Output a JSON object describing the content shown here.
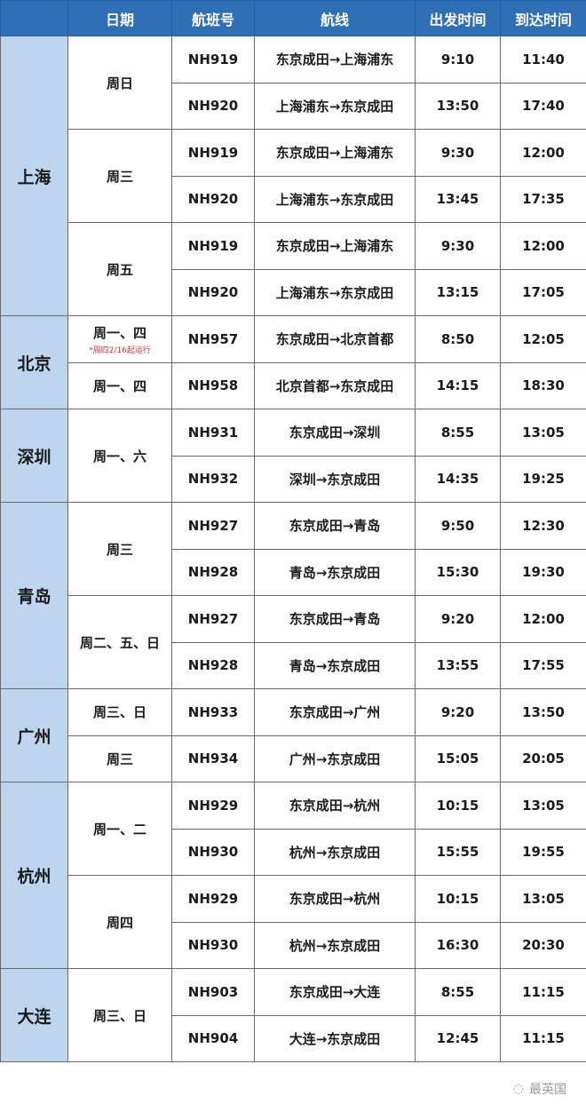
{
  "header": {
    "city": "",
    "date": "日期",
    "flight": "航班号",
    "route": "航线",
    "depart": "出发时间",
    "arrive": "到达时间"
  },
  "colors": {
    "header_bg": "#2f6fb6",
    "city_bg": "#bdd5ee",
    "note": "#d0343c"
  },
  "cities": [
    {
      "name": "上海",
      "groups": [
        {
          "days": "周日",
          "flights": [
            {
              "no": "NH919",
              "route": "东京成田→上海浦东",
              "dep": "9:10",
              "arr": "11:40"
            },
            {
              "no": "NH920",
              "route": "上海浦东→东京成田",
              "dep": "13:50",
              "arr": "17:40"
            }
          ]
        },
        {
          "days": "周三",
          "flights": [
            {
              "no": "NH919",
              "route": "东京成田→上海浦东",
              "dep": "9:30",
              "arr": "12:00"
            },
            {
              "no": "NH920",
              "route": "上海浦东→东京成田",
              "dep": "13:45",
              "arr": "17:35"
            }
          ]
        },
        {
          "days": "周五",
          "flights": [
            {
              "no": "NH919",
              "route": "东京成田→上海浦东",
              "dep": "9:30",
              "arr": "12:00"
            },
            {
              "no": "NH920",
              "route": "上海浦东→东京成田",
              "dep": "13:15",
              "arr": "17:05"
            }
          ]
        }
      ]
    },
    {
      "name": "北京",
      "groups": [
        {
          "days": "周一、四",
          "note": "*周四2/16起运行",
          "flights": [
            {
              "no": "NH957",
              "route": "东京成田→北京首都",
              "dep": "8:50",
              "arr": "12:05"
            }
          ]
        },
        {
          "days": "周一、四",
          "flights": [
            {
              "no": "NH958",
              "route": "北京首都→东京成田",
              "dep": "14:15",
              "arr": "18:30"
            }
          ]
        }
      ]
    },
    {
      "name": "深圳",
      "groups": [
        {
          "days": "周一、六",
          "flights": [
            {
              "no": "NH931",
              "route": "东京成田→深圳",
              "dep": "8:55",
              "arr": "13:05"
            },
            {
              "no": "NH932",
              "route": "深圳→东京成田",
              "dep": "14:35",
              "arr": "19:25"
            }
          ]
        }
      ]
    },
    {
      "name": "青岛",
      "groups": [
        {
          "days": "周三",
          "flights": [
            {
              "no": "NH927",
              "route": "东京成田→青岛",
              "dep": "9:50",
              "arr": "12:30"
            },
            {
              "no": "NH928",
              "route": "青岛→东京成田",
              "dep": "15:30",
              "arr": "19:30"
            }
          ]
        },
        {
          "days": "周二、五、日",
          "flights": [
            {
              "no": "NH927",
              "route": "东京成田→青岛",
              "dep": "9:20",
              "arr": "12:00"
            },
            {
              "no": "NH928",
              "route": "青岛→东京成田",
              "dep": "13:55",
              "arr": "17:55"
            }
          ]
        }
      ]
    },
    {
      "name": "广州",
      "groups": [
        {
          "days": "周三、日",
          "flights": [
            {
              "no": "NH933",
              "route": "东京成田→广州",
              "dep": "9:20",
              "arr": "13:50"
            }
          ]
        },
        {
          "days": "周三",
          "flights": [
            {
              "no": "NH934",
              "route": "广州→东京成田",
              "dep": "15:05",
              "arr": "20:05"
            }
          ]
        }
      ]
    },
    {
      "name": "杭州",
      "groups": [
        {
          "days": "周一、二",
          "flights": [
            {
              "no": "NH929",
              "route": "东京成田→杭州",
              "dep": "10:15",
              "arr": "13:05"
            },
            {
              "no": "NH930",
              "route": "杭州→东京成田",
              "dep": "15:55",
              "arr": "19:55"
            }
          ]
        },
        {
          "days": "周四",
          "flights": [
            {
              "no": "NH929",
              "route": "东京成田→杭州",
              "dep": "10:15",
              "arr": "13:05"
            },
            {
              "no": "NH930",
              "route": "杭州→东京成田",
              "dep": "16:30",
              "arr": "20:30"
            }
          ]
        }
      ]
    },
    {
      "name": "大连",
      "groups": [
        {
          "days": "周三、日",
          "flights": [
            {
              "no": "NH903",
              "route": "东京成田→大连",
              "dep": "8:55",
              "arr": "11:15"
            },
            {
              "no": "NH904",
              "route": "大连→东京成田",
              "dep": "12:45",
              "arr": "11:15"
            }
          ]
        }
      ]
    }
  ],
  "watermark": "最英国"
}
